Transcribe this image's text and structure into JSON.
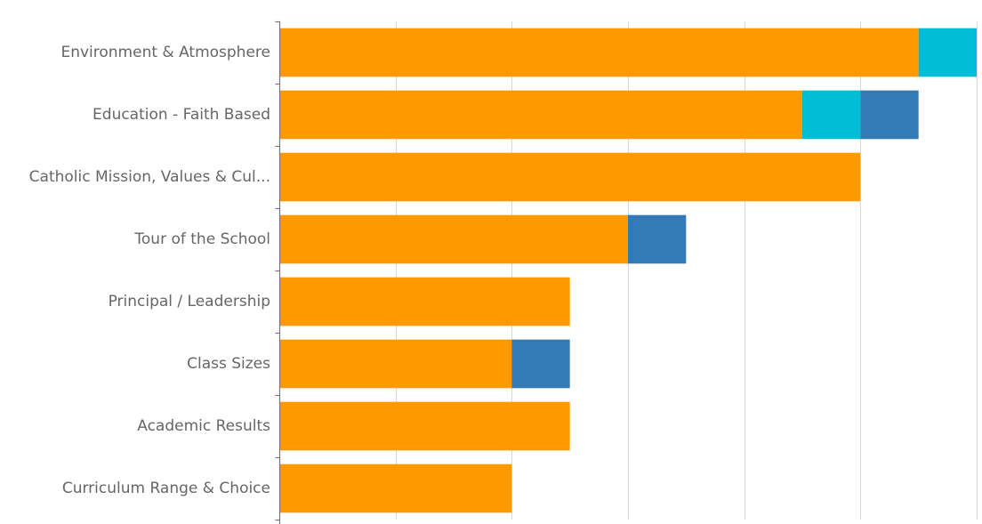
{
  "chart_data": {
    "type": "bar",
    "orientation": "horizontal",
    "stacked": true,
    "categories": [
      "Environment & Atmosphere",
      "Education - Faith Based",
      "Catholic Mission, Values & Cul...",
      "Tour of the School",
      "Principal / Leadership",
      "Class Sizes",
      "Academic Results",
      "Curriculum Range & Choice"
    ],
    "series": [
      {
        "color": "#ff9900",
        "values": [
          11,
          9,
          10,
          6,
          5,
          4,
          5,
          4
        ]
      },
      {
        "color": "#00bcd4",
        "values": [
          1,
          1,
          0,
          0,
          0,
          0,
          0,
          0
        ]
      },
      {
        "color": "#337ab7",
        "values": [
          0,
          1,
          0,
          1,
          0,
          1,
          0,
          0
        ]
      }
    ],
    "xlim": [
      0,
      12
    ],
    "grid": true,
    "legend": "none"
  }
}
